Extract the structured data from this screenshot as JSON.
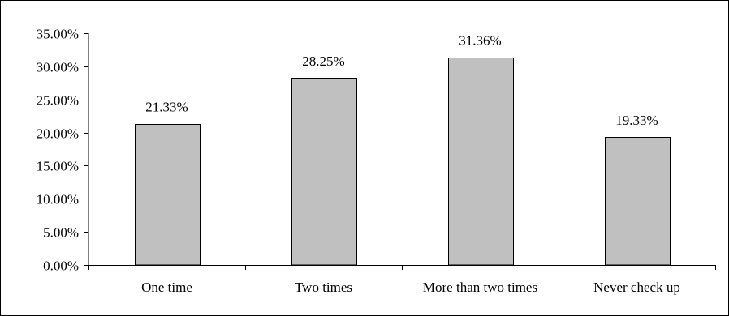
{
  "chart_data": {
    "type": "bar",
    "title": "",
    "xlabel": "",
    "ylabel": "",
    "categories": [
      "One time",
      "Two times",
      "More than two times",
      "Never check up"
    ],
    "values": [
      21.33,
      28.25,
      31.36,
      19.33
    ],
    "data_labels": [
      "21.33%",
      "28.25%",
      "31.36%",
      "19.33%"
    ],
    "ylim": [
      0,
      35
    ],
    "y_ticks": [
      0,
      5,
      10,
      15,
      20,
      25,
      30,
      35
    ],
    "y_tick_labels": [
      "0.00%",
      "5.00%",
      "10.00%",
      "15.00%",
      "20.00%",
      "25.00%",
      "30.00%",
      "35.00%"
    ],
    "grid": false,
    "legend": "none",
    "bar_color": "#c0c0c0",
    "bar_border_color": "#000000"
  }
}
